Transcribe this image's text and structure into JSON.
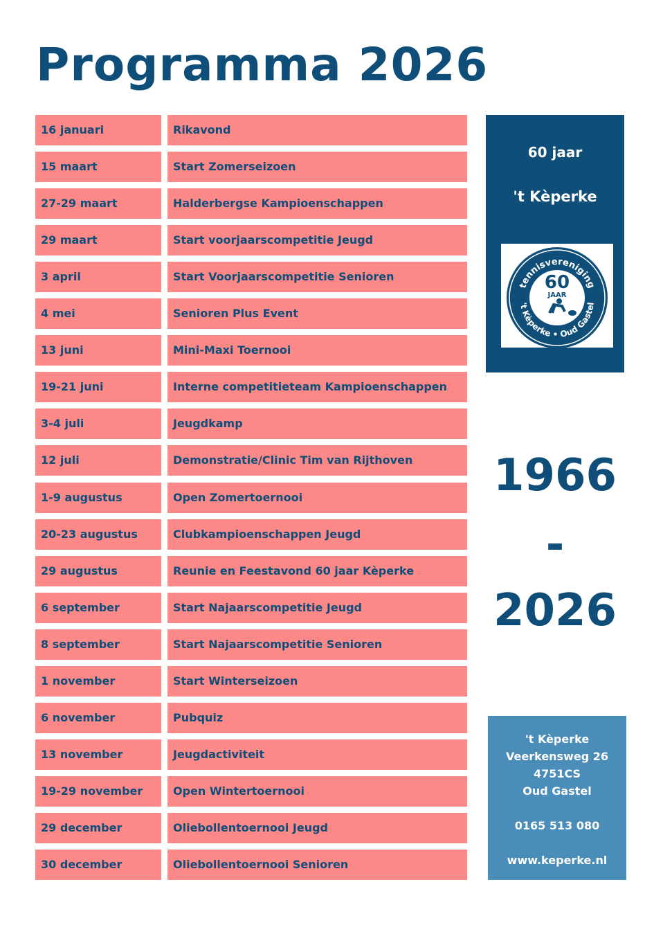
{
  "title": "Programma 2026",
  "events": [
    {
      "date": "16 januari",
      "event": "Rikavond"
    },
    {
      "date": "15 maart",
      "event": "Start Zomerseizoen"
    },
    {
      "date": "27-29 maart",
      "event": "Halderbergse Kampioenschappen"
    },
    {
      "date": "29 maart",
      "event": "Start voorjaarscompetitie Jeugd"
    },
    {
      "date": "3 april",
      "event": "Start Voorjaarscompetitie Senioren"
    },
    {
      "date": "4 mei",
      "event": "Senioren Plus Event"
    },
    {
      "date": "13 juni",
      "event": "Mini-Maxi Toernooi"
    },
    {
      "date": "19-21 juni",
      "event": "Interne competitieteam Kampioenschappen"
    },
    {
      "date": "3-4 juli",
      "event": "Jeugdkamp"
    },
    {
      "date": "12 juli",
      "event": "Demonstratie/Clinic Tim van Rijthoven"
    },
    {
      "date": "1-9 augustus",
      "event": "Open Zomertoernooi"
    },
    {
      "date": "20-23 augustus",
      "event": "Clubkampioenschappen Jeugd"
    },
    {
      "date": "29 augustus",
      "event": "Reunie en Feestavond 60 jaar Kèperke"
    },
    {
      "date": "6 september",
      "event": "Start Najaarscompetitie Jeugd"
    },
    {
      "date": "8 september",
      "event": "Start Najaarscompetitie Senioren"
    },
    {
      "date": "1 november",
      "event": "Start Winterseizoen"
    },
    {
      "date": "6 november",
      "event": "Pubquiz"
    },
    {
      "date": "13 november",
      "event": "Jeugdactiviteit"
    },
    {
      "date": "19-29 november",
      "event": "Open Wintertoernooi"
    },
    {
      "date": "29 december",
      "event": "Oliebollentoernooi Jeugd"
    },
    {
      "date": "30 december",
      "event": "Oliebollentoernooi Senioren"
    }
  ],
  "panel": {
    "line1": "60 jaar",
    "line2": "'t Kèperke",
    "logo_text": {
      "top": "tennisvereniging",
      "number": "60",
      "sub": "JAAR",
      "bottom": "'t Kèperke • Oud Gastel"
    }
  },
  "years": {
    "start": "1966",
    "dash": "-",
    "end": "2026"
  },
  "contact": {
    "name": "'t Kèperke",
    "street": "Veerkensweg 26",
    "postcode": "4751CS",
    "city": "Oud Gastel",
    "phone": "0165 513 080",
    "web": "www.keperke.nl"
  },
  "colors": {
    "primary": "#0f4e78",
    "row": "#fd8888",
    "contact_bg": "#4a8db8"
  }
}
